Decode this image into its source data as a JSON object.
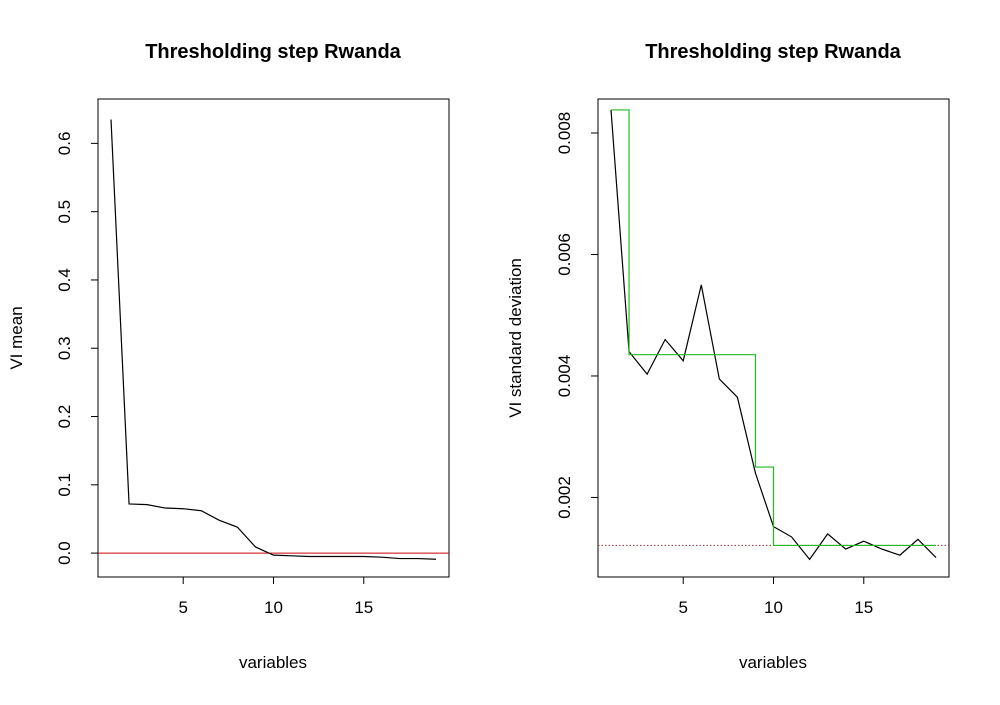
{
  "chart_data": [
    {
      "type": "line",
      "title": "Thresholding step Rwanda",
      "xlabel": "variables",
      "ylabel": "VI mean",
      "xlim": [
        0.28,
        19.72
      ],
      "ylim": [
        -0.035,
        0.665
      ],
      "x_ticks": [
        5,
        10,
        15
      ],
      "y_ticks": [
        0.0,
        0.1,
        0.2,
        0.3,
        0.4,
        0.5,
        0.6
      ],
      "y_tick_labels": [
        "0.0",
        "0.1",
        "0.2",
        "0.3",
        "0.4",
        "0.5",
        "0.6"
      ],
      "grid": false,
      "series": [
        {
          "color": "#000000",
          "x": [
            1,
            2,
            3,
            4,
            5,
            6,
            7,
            8,
            9,
            10,
            11,
            12,
            13,
            14,
            15,
            16,
            17,
            18,
            19
          ],
          "values": [
            0.635,
            0.072,
            0.071,
            0.066,
            0.065,
            0.062,
            0.048,
            0.038,
            0.009,
            -0.003,
            -0.004,
            -0.005,
            -0.005,
            -0.005,
            -0.005,
            -0.006,
            -0.008,
            -0.008,
            -0.009
          ]
        }
      ],
      "hlines": [
        {
          "y": 0.0,
          "color": "#cc0000",
          "style": "solid"
        }
      ]
    },
    {
      "type": "line",
      "title": "Thresholding step Rwanda",
      "xlabel": "variables",
      "ylabel": "VI standard deviation",
      "xlim": [
        0.28,
        19.72
      ],
      "ylim": [
        0.00069,
        0.00856
      ],
      "x_ticks": [
        5,
        10,
        15
      ],
      "y_ticks": [
        0.002,
        0.004,
        0.006,
        0.008
      ],
      "y_tick_labels": [
        "0.002",
        "0.004",
        "0.006",
        "0.008"
      ],
      "grid": false,
      "series": [
        {
          "color": "#000000",
          "x": [
            1,
            2,
            3,
            4,
            5,
            6,
            7,
            8,
            9,
            10,
            11,
            12,
            13,
            14,
            15,
            16,
            17,
            18,
            19
          ],
          "values": [
            0.00838,
            0.0044,
            0.00403,
            0.0046,
            0.00425,
            0.0055,
            0.00395,
            0.00365,
            0.0024,
            0.00152,
            0.00135,
            0.00098,
            0.0014,
            0.00115,
            0.00128,
            0.00115,
            0.00105,
            0.00131,
            0.00101
          ]
        },
        {
          "color": "#22bb22",
          "step": true,
          "x": [
            1,
            2,
            9,
            10,
            19
          ],
          "values": [
            0.00838,
            0.00435,
            0.0025,
            0.00121,
            0.00121
          ]
        }
      ],
      "hlines": [
        {
          "y": 0.00121,
          "color": "#993333",
          "style": "dotted"
        }
      ]
    }
  ]
}
